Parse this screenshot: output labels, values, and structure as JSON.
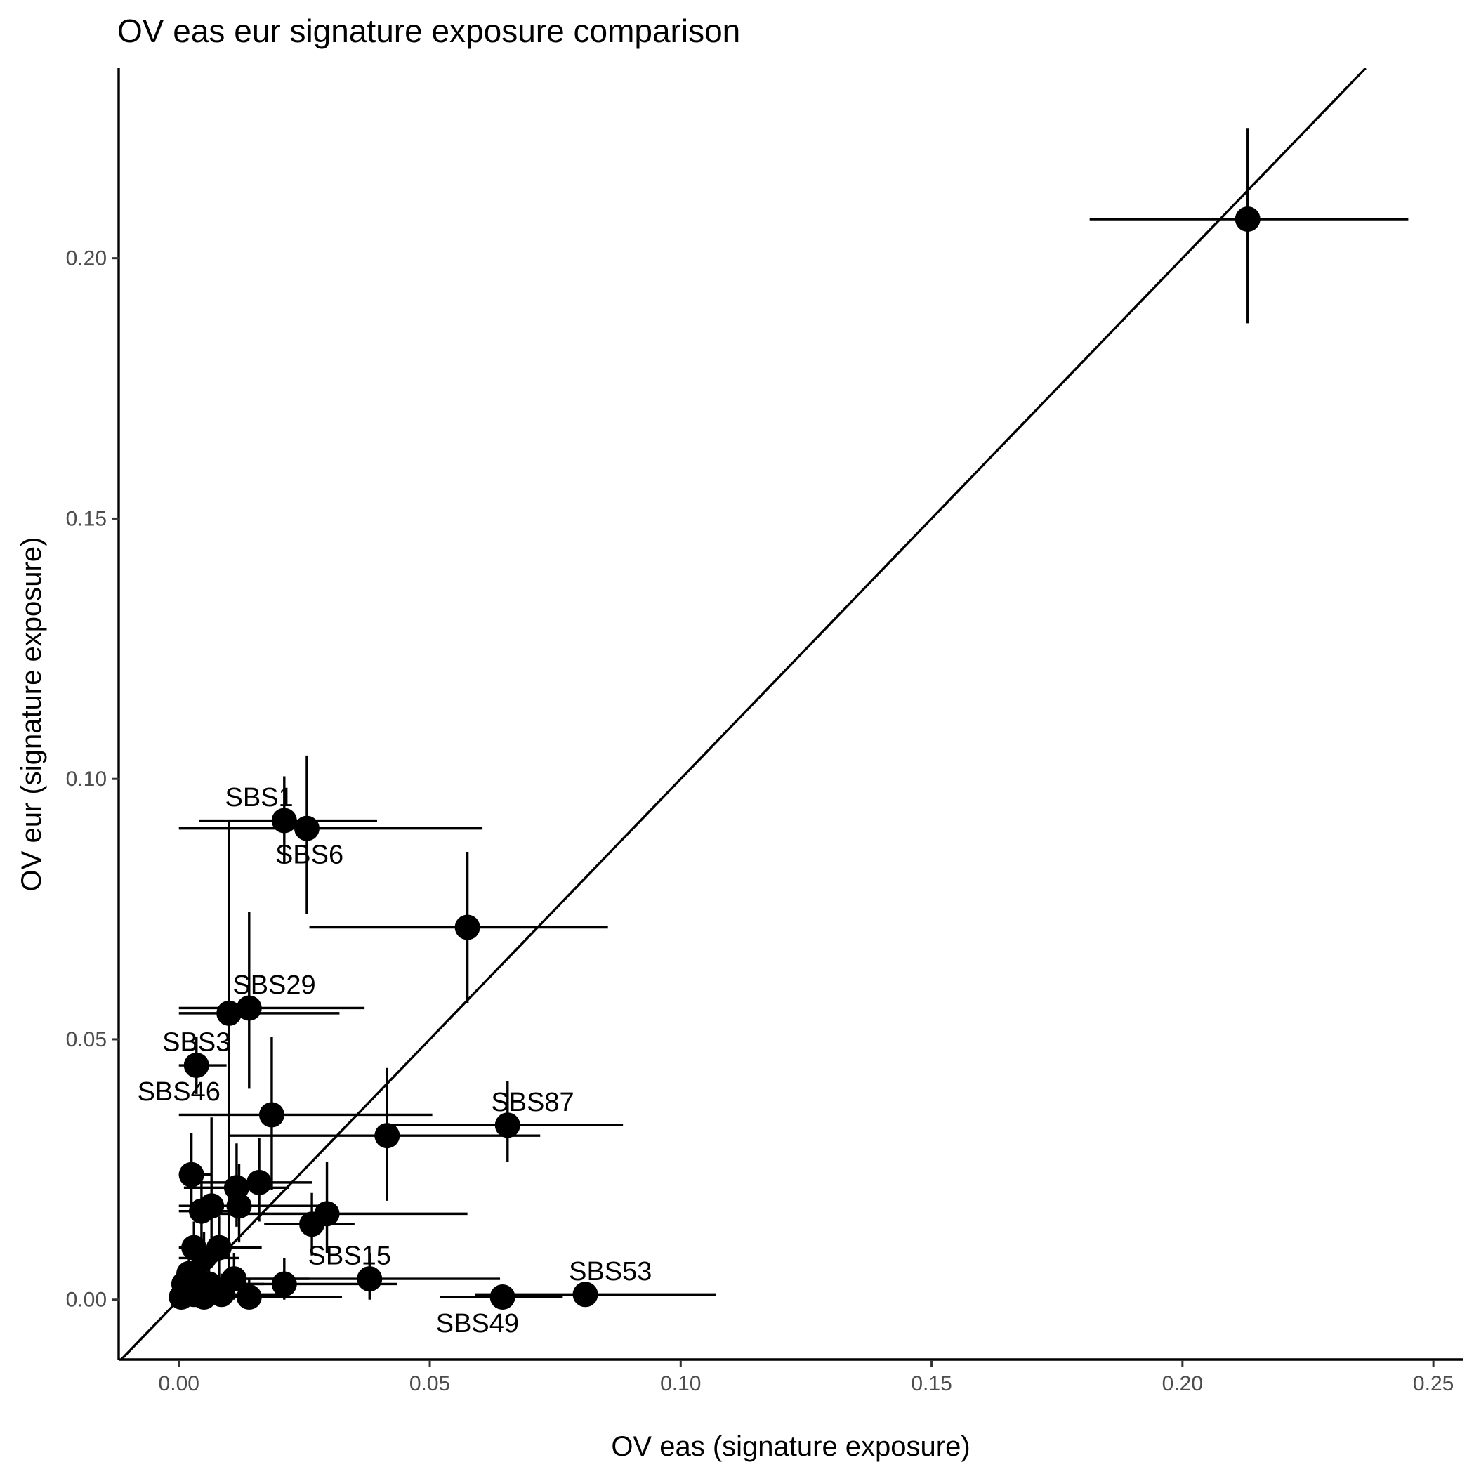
{
  "chart_data": {
    "type": "scatter",
    "title": "OV eas eur signature exposure comparison",
    "xlabel": "OV eas (signature exposure)",
    "ylabel": "OV eur (signature exposure)",
    "xlim": [
      -0.012,
      0.256
    ],
    "ylim": [
      -0.0115,
      0.2365
    ],
    "x_ticks": [
      0.0,
      0.05,
      0.1,
      0.15,
      0.2,
      0.25
    ],
    "x_tick_labels": [
      "0.00",
      "0.05",
      "0.10",
      "0.15",
      "0.20",
      "0.25"
    ],
    "y_ticks": [
      0.0,
      0.05,
      0.1,
      0.15,
      0.2
    ],
    "y_tick_labels": [
      "0.00",
      "0.05",
      "0.10",
      "0.15",
      "0.20"
    ],
    "reference_line": "y = x",
    "grid": false,
    "legend": "none",
    "points": [
      {
        "x": 0.213,
        "y": 0.2075,
        "xlo": 0.1815,
        "xhi": 0.245,
        "ylo": 0.1875,
        "yhi": 0.225,
        "label": ""
      },
      {
        "x": 0.021,
        "y": 0.092,
        "xlo": 0.004,
        "xhi": 0.0395,
        "ylo": 0.084,
        "yhi": 0.1005,
        "label": "SBS1",
        "label_dx": -0.005,
        "label_dy": 0.0045
      },
      {
        "x": 0.0255,
        "y": 0.0905,
        "xlo": 0.0,
        "xhi": 0.0605,
        "ylo": 0.074,
        "yhi": 0.1045,
        "label": "SBS6",
        "label_dx": 0.0005,
        "label_dy": -0.005
      },
      {
        "x": 0.0575,
        "y": 0.0715,
        "xlo": 0.026,
        "xhi": 0.0855,
        "ylo": 0.057,
        "yhi": 0.086,
        "label": ""
      },
      {
        "x": 0.014,
        "y": 0.056,
        "xlo": 0.0,
        "xhi": 0.037,
        "ylo": 0.0405,
        "yhi": 0.0745,
        "label": "SBS29",
        "label_dx": 0.005,
        "label_dy": 0.0045
      },
      {
        "x": 0.01,
        "y": 0.055,
        "xlo": 0.0,
        "xhi": 0.032,
        "ylo": 0.0,
        "yhi": 0.092,
        "label": ""
      },
      {
        "x": 0.0035,
        "y": 0.045,
        "xlo": 0.0,
        "xhi": 0.0095,
        "ylo": 0.0395,
        "yhi": 0.0505,
        "label": "SBS3",
        "label_dx": 0.0,
        "label_dy": 0.0045
      },
      {
        "x": 0.0185,
        "y": 0.0355,
        "xlo": 0.0,
        "xhi": 0.0505,
        "ylo": 0.021,
        "yhi": 0.0505,
        "label": "SBS46",
        "label_dx": -0.0185,
        "label_dy": 0.0045
      },
      {
        "x": 0.0655,
        "y": 0.0335,
        "xlo": 0.0415,
        "xhi": 0.0885,
        "ylo": 0.0265,
        "yhi": 0.042,
        "label": "SBS87",
        "label_dx": 0.005,
        "label_dy": 0.0045
      },
      {
        "x": 0.0415,
        "y": 0.0315,
        "xlo": 0.01,
        "xhi": 0.072,
        "ylo": 0.019,
        "yhi": 0.0445,
        "label": ""
      },
      {
        "x": 0.0025,
        "y": 0.024,
        "xlo": 0.0,
        "xhi": 0.0065,
        "ylo": 0.0165,
        "yhi": 0.032,
        "label": ""
      },
      {
        "x": 0.016,
        "y": 0.0225,
        "xlo": 0.004,
        "xhi": 0.0265,
        "ylo": 0.015,
        "yhi": 0.031,
        "label": ""
      },
      {
        "x": 0.0115,
        "y": 0.0215,
        "xlo": 0.001,
        "xhi": 0.022,
        "ylo": 0.014,
        "yhi": 0.03,
        "label": ""
      },
      {
        "x": 0.012,
        "y": 0.018,
        "xlo": 0.0005,
        "xhi": 0.03,
        "ylo": 0.011,
        "yhi": 0.026,
        "label": ""
      },
      {
        "x": 0.0065,
        "y": 0.018,
        "xlo": 0.0,
        "xhi": 0.016,
        "ylo": 0.008,
        "yhi": 0.035,
        "label": ""
      },
      {
        "x": 0.0045,
        "y": 0.017,
        "xlo": 0.0,
        "xhi": 0.012,
        "ylo": 0.01,
        "yhi": 0.024,
        "label": ""
      },
      {
        "x": 0.0295,
        "y": 0.0165,
        "xlo": 0.005,
        "xhi": 0.0575,
        "ylo": 0.009,
        "yhi": 0.0265,
        "label": ""
      },
      {
        "x": 0.0265,
        "y": 0.0145,
        "xlo": 0.017,
        "xhi": 0.035,
        "ylo": 0.0085,
        "yhi": 0.0205,
        "label": ""
      },
      {
        "x": 0.008,
        "y": 0.01,
        "xlo": 0.001,
        "xhi": 0.0165,
        "ylo": 0.004,
        "yhi": 0.016,
        "label": ""
      },
      {
        "x": 0.003,
        "y": 0.01,
        "xlo": 0.0,
        "xhi": 0.008,
        "ylo": 0.004,
        "yhi": 0.015,
        "label": ""
      },
      {
        "x": 0.005,
        "y": 0.008,
        "xlo": 0.0,
        "xhi": 0.012,
        "ylo": 0.003,
        "yhi": 0.013,
        "label": ""
      },
      {
        "x": 0.038,
        "y": 0.004,
        "xlo": 0.012,
        "xhi": 0.064,
        "ylo": 0.0,
        "yhi": 0.009,
        "label": "SBS15",
        "label_dx": -0.004,
        "label_dy": 0.0045
      },
      {
        "x": 0.021,
        "y": 0.003,
        "xlo": 0.0,
        "xhi": 0.0435,
        "ylo": 0.0,
        "yhi": 0.008,
        "label": ""
      },
      {
        "x": 0.011,
        "y": 0.004,
        "xlo": 0.0,
        "xhi": 0.026,
        "ylo": 0.0,
        "yhi": 0.009,
        "label": ""
      },
      {
        "x": 0.014,
        "y": 0.0005,
        "xlo": 0.0,
        "xhi": 0.0325,
        "ylo": 0.0,
        "yhi": 0.004,
        "label": ""
      },
      {
        "x": 0.0645,
        "y": 0.0005,
        "xlo": 0.052,
        "xhi": 0.0765,
        "ylo": 0.0,
        "yhi": 0.002,
        "label": "SBS49",
        "label_dx": -0.005,
        "label_dy": -0.005
      },
      {
        "x": 0.081,
        "y": 0.001,
        "xlo": 0.059,
        "xhi": 0.107,
        "ylo": 0.0,
        "yhi": 0.003,
        "label": "SBS53",
        "label_dx": 0.005,
        "label_dy": 0.0045
      },
      {
        "x": 0.006,
        "y": 0.003,
        "xlo": 0.0,
        "xhi": 0.017,
        "ylo": 0.0,
        "yhi": 0.008,
        "label": ""
      },
      {
        "x": 0.0085,
        "y": 0.001,
        "xlo": 0.0,
        "xhi": 0.02,
        "ylo": 0.0,
        "yhi": 0.005,
        "label": ""
      },
      {
        "x": 0.005,
        "y": 0.0005,
        "xlo": 0.0,
        "xhi": 0.015,
        "ylo": 0.0,
        "yhi": 0.003,
        "label": ""
      },
      {
        "x": 0.002,
        "y": 0.005,
        "xlo": 0.0,
        "xhi": 0.007,
        "ylo": 0.0,
        "yhi": 0.009,
        "label": ""
      },
      {
        "x": 0.0015,
        "y": 0.002,
        "xlo": 0.0,
        "xhi": 0.006,
        "ylo": 0.0,
        "yhi": 0.006,
        "label": ""
      },
      {
        "x": 0.003,
        "y": 0.001,
        "xlo": 0.0,
        "xhi": 0.008,
        "ylo": 0.0,
        "yhi": 0.004,
        "label": ""
      },
      {
        "x": 0.0005,
        "y": 0.0005,
        "xlo": 0.0,
        "xhi": 0.003,
        "ylo": 0.0,
        "yhi": 0.002,
        "label": ""
      },
      {
        "x": 0.001,
        "y": 0.003,
        "xlo": 0.0,
        "xhi": 0.004,
        "ylo": 0.0,
        "yhi": 0.006,
        "label": ""
      },
      {
        "x": 0.004,
        "y": 0.0035,
        "xlo": 0.0,
        "xhi": 0.01,
        "ylo": 0.0,
        "yhi": 0.007,
        "label": ""
      }
    ]
  }
}
